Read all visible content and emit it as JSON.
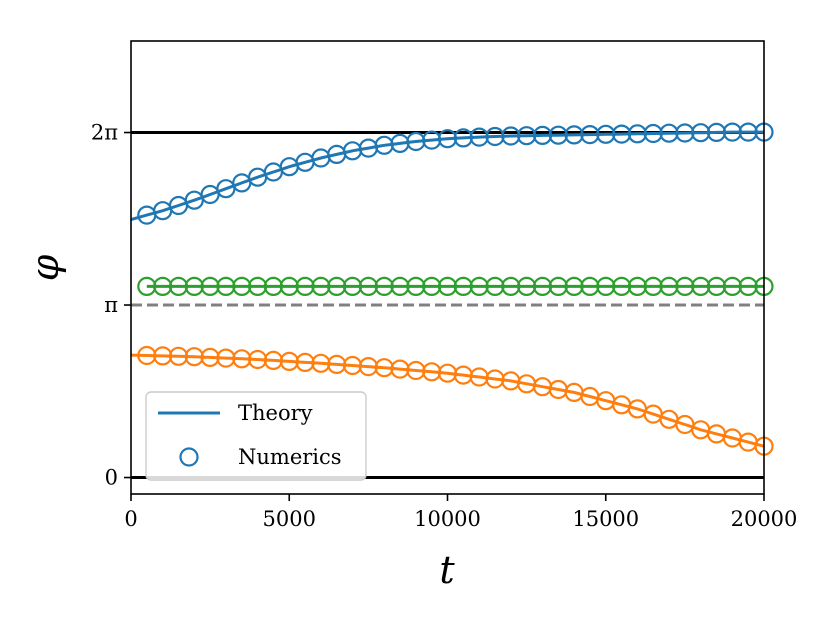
{
  "chart_data": {
    "type": "line",
    "title": "",
    "xlabel": "t",
    "ylabel": "φ",
    "xlim": [
      0,
      20000
    ],
    "ylim": [
      -0.3,
      7.95
    ],
    "x_ticks": [
      {
        "value": 0,
        "label": "0"
      },
      {
        "value": 5000,
        "label": "5000"
      },
      {
        "value": 10000,
        "label": "10000"
      },
      {
        "value": 15000,
        "label": "15000"
      },
      {
        "value": 20000,
        "label": "20000"
      }
    ],
    "y_ticks": [
      {
        "value": 0,
        "label": "0"
      },
      {
        "value": 3.14159,
        "label": "π"
      },
      {
        "value": 6.28319,
        "label": "2π"
      }
    ],
    "reference_lines": [
      {
        "name": "zero-line",
        "y": 0,
        "color": "#000000",
        "style": "solid"
      },
      {
        "name": "pi-line",
        "y": 3.14159,
        "color": "#808080",
        "style": "dashed"
      },
      {
        "name": "two-pi-line",
        "y": 6.28319,
        "color": "#000000",
        "style": "solid"
      }
    ],
    "marker_x": [
      500,
      1000,
      1500,
      2000,
      2500,
      3000,
      3500,
      4000,
      4500,
      5000,
      5500,
      6000,
      6500,
      7000,
      7500,
      8000,
      8500,
      9000,
      9500,
      10000,
      10500,
      11000,
      11500,
      12000,
      12500,
      13000,
      13500,
      14000,
      14500,
      15000,
      15500,
      16000,
      16500,
      17000,
      17500,
      18000,
      18500,
      19000,
      19500,
      20000
    ],
    "series": [
      {
        "name": "blue",
        "color": "#1f77b4",
        "theory_x": [
          0,
          1000,
          2000,
          3000,
          4000,
          5000,
          6000,
          7000,
          8000,
          9000,
          10000,
          11000,
          12000,
          13000,
          14000,
          15000,
          16000,
          17000,
          18000,
          19000,
          20000
        ],
        "theory_y": [
          4.7,
          4.86,
          5.05,
          5.26,
          5.47,
          5.66,
          5.82,
          5.95,
          6.05,
          6.12,
          6.17,
          6.2,
          6.22,
          6.23,
          6.24,
          6.25,
          6.26,
          6.27,
          6.28,
          6.29,
          6.29
        ],
        "theory_start_x": 0
      },
      {
        "name": "green",
        "color": "#2ca02c",
        "theory_x": [
          0,
          20000
        ],
        "theory_y": [
          3.48,
          3.48
        ],
        "theory_start_x": 500
      },
      {
        "name": "orange",
        "color": "#ff7f0e",
        "theory_x": [
          0,
          2000,
          4000,
          6000,
          8000,
          10000,
          12000,
          14000,
          16000,
          18000,
          20000
        ],
        "theory_y": [
          2.23,
          2.2,
          2.15,
          2.08,
          2.0,
          1.9,
          1.76,
          1.55,
          1.25,
          0.87,
          0.57
        ],
        "theory_start_x": 0
      }
    ],
    "legend": {
      "position": "lower-left",
      "entries": [
        {
          "label": "Theory",
          "style": "line",
          "color": "#1f77b4"
        },
        {
          "label": "Numerics",
          "style": "marker",
          "color": "#1f77b4"
        }
      ]
    }
  }
}
